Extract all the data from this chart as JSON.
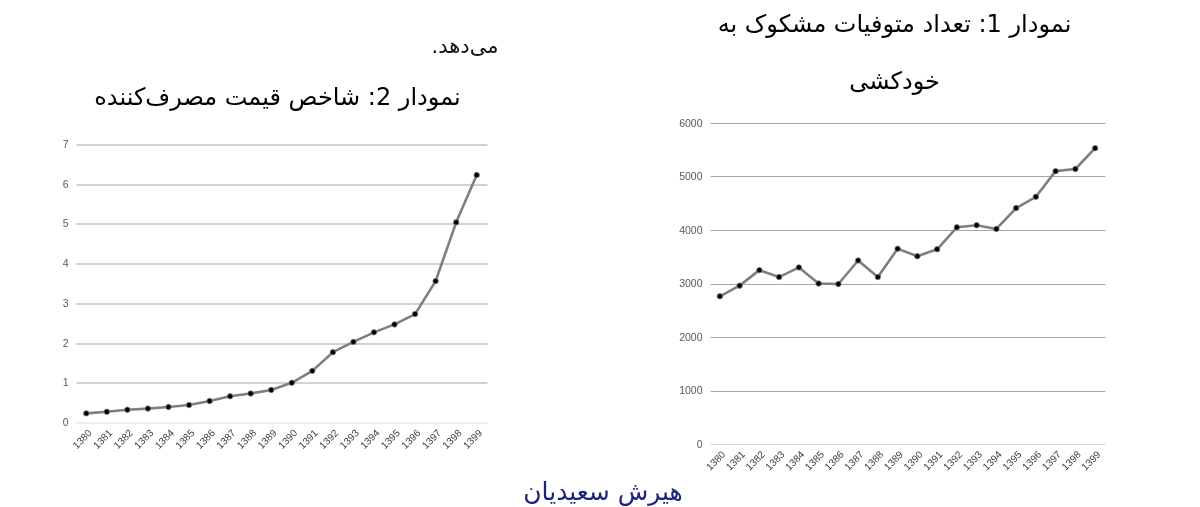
{
  "chart_data": [
    {
      "type": "line",
      "title": "نمودار 2: شاخص قیمت مصرف‌کننده",
      "annotations": [
        "می‌دهد."
      ],
      "categories": [
        "1380",
        "1381",
        "1382",
        "1383",
        "1384",
        "1385",
        "1386",
        "1387",
        "1388",
        "1389",
        "1390",
        "1391",
        "1392",
        "1393",
        "1394",
        "1395",
        "1396",
        "1397",
        "1398",
        "1399"
      ],
      "values": [
        0.23,
        0.27,
        0.32,
        0.35,
        0.39,
        0.44,
        0.54,
        0.66,
        0.73,
        0.82,
        1.0,
        1.3,
        1.77,
        2.03,
        2.27,
        2.47,
        2.73,
        3.56,
        5.04,
        6.23
      ],
      "color": "#7f7f7f",
      "colors": [
        "#000000",
        "#000000",
        "#000000",
        "#000000",
        "#000000",
        "#000000",
        "#000000",
        "#000000",
        "#000000",
        "#000000",
        "#000000",
        "#000000",
        "#000000",
        "#000000",
        "#000000",
        "#000000",
        "#000000",
        "#000000",
        "#000000",
        "#000000"
      ],
      "ylim": [
        0,
        7
      ],
      "yticks": [
        0,
        1,
        2,
        3,
        4,
        5,
        6,
        7
      ],
      "grid": "y",
      "marker": "circle",
      "line_style": "solid"
    },
    {
      "type": "line",
      "title": "نمودار 1: تعداد متوفیات مشکوک به خودکشی",
      "annotations": [
        "هیرش سعیدیان"
      ],
      "categories": [
        "1380",
        "1381",
        "1382",
        "1383",
        "1384",
        "1385",
        "1386",
        "1387",
        "1388",
        "1389",
        "1390",
        "1391",
        "1392",
        "1393",
        "1394",
        "1395",
        "1396",
        "1397",
        "1398",
        "1399"
      ],
      "values": [
        2760,
        2960,
        3250,
        3120,
        3300,
        3000,
        2990,
        3430,
        3120,
        3650,
        3510,
        3640,
        4050,
        4090,
        4020,
        4410,
        4620,
        5100,
        5140,
        5530
      ],
      "color": "#7f7f7f",
      "colors": [
        "#000000",
        "#000000",
        "#000000",
        "#000000",
        "#000000",
        "#000000",
        "#000000",
        "#000000",
        "#000000",
        "#000000",
        "#000000",
        "#000000",
        "#000000",
        "#000000",
        "#000000",
        "#000000",
        "#000000",
        "#000000",
        "#000000",
        "#000000"
      ],
      "ylim": [
        0,
        6000
      ],
      "yticks": [
        0,
        1000,
        2000,
        3000,
        4000,
        5000,
        6000
      ],
      "grid": "y",
      "marker": "circle",
      "line_style": "solid"
    }
  ]
}
